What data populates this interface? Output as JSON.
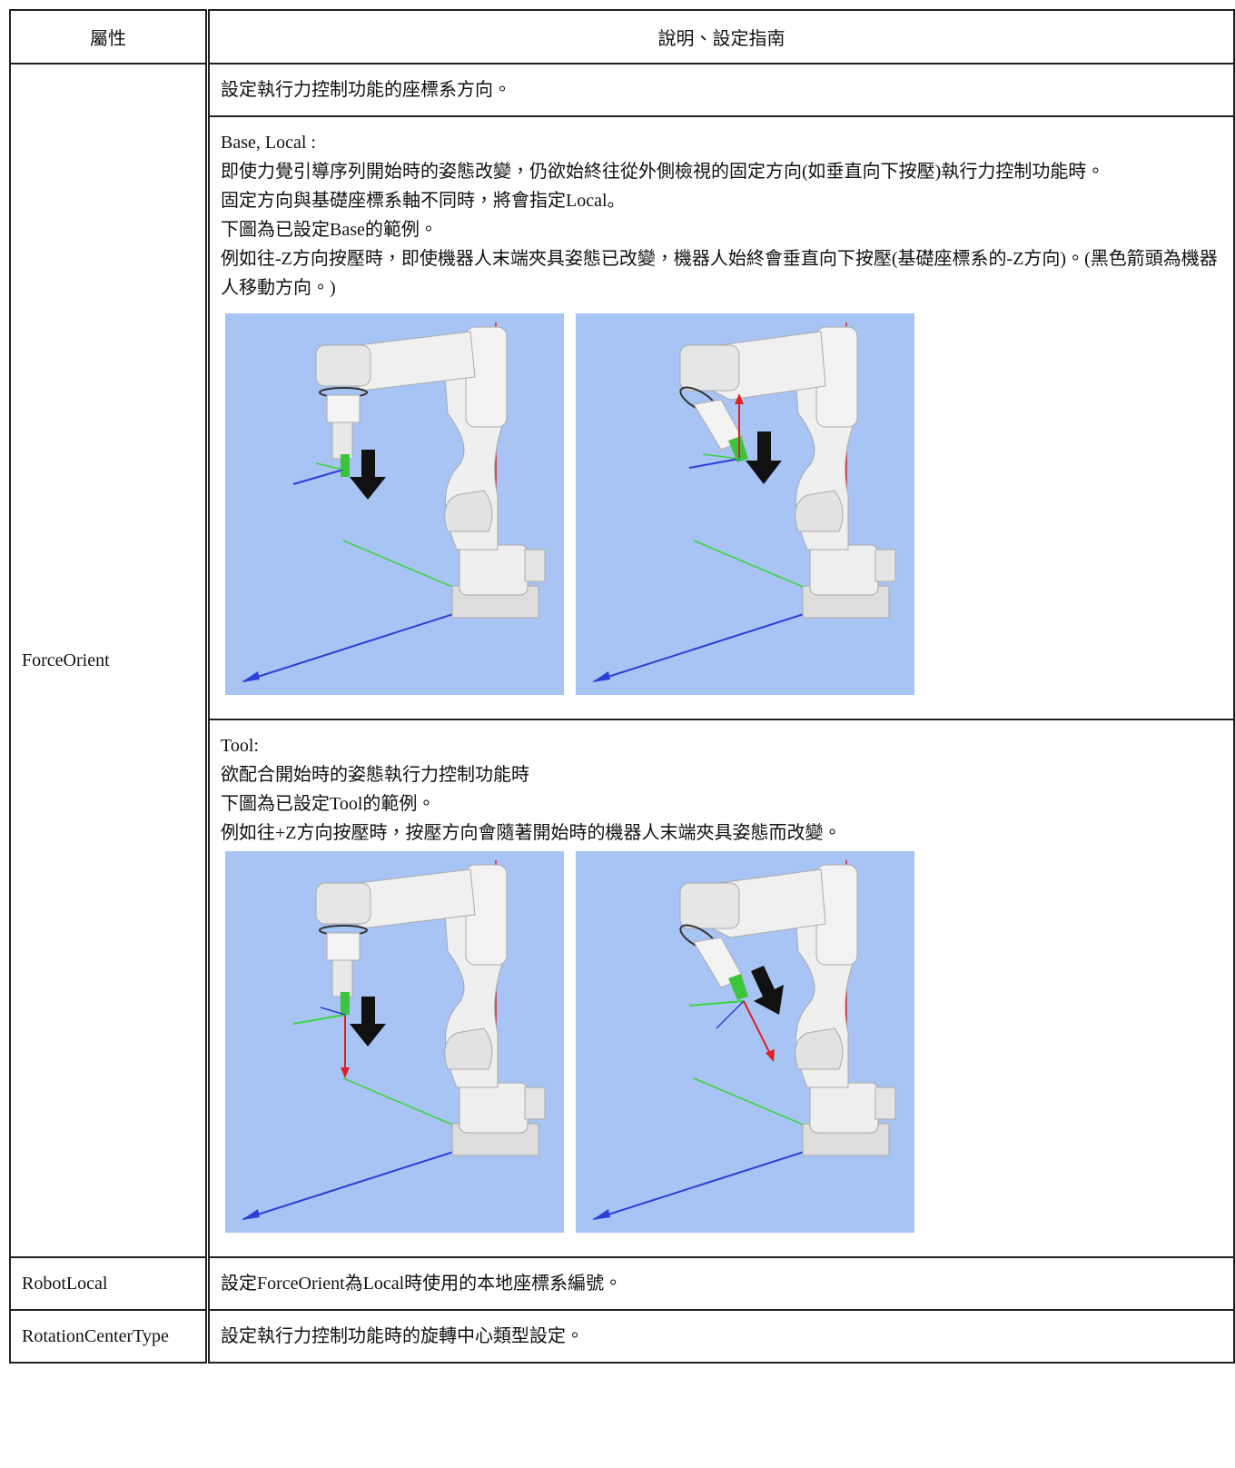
{
  "table": {
    "header": [
      "屬性",
      "說明、設定指南"
    ],
    "rows": [
      {
        "property": "ForceOrient",
        "descriptions": [
          [
            "設定執行力控制功能的座標系方向。"
          ],
          [
            "Base, Local :",
            "即使力覺引導序列開始時的姿態改變，仍欲始終往從外側檢視的固定方向(如垂直向下按壓)執行力控制功能時。",
            "固定方向與基礎座標系軸不同時，將會指定Local。",
            "下圖為已設定Base的範例。",
            "例如往-Z方向按壓時，即使機器人末端夾具姿態已改變，機器人始終會垂直向下按壓(基礎座標系的-Z方向)。(黑色箭頭為機器人移動方向。)"
          ],
          [
            "Tool:",
            "欲配合開始時的姿態執行力控制功能時",
            "下圖為已設定Tool的範例。",
            "例如往+Z方向按壓時，按壓方向會隨著開始時的機器人末端夾具姿態而改變。"
          ]
        ]
      },
      {
        "property": "RobotLocal",
        "descriptions": [
          [
            "設定ForceOrient為Local時使用的本地座標系編號。"
          ]
        ]
      },
      {
        "property": "RotationCenterType",
        "descriptions": [
          [
            "設定執行力控制功能時的旋轉中心類型設定。"
          ]
        ]
      }
    ]
  }
}
